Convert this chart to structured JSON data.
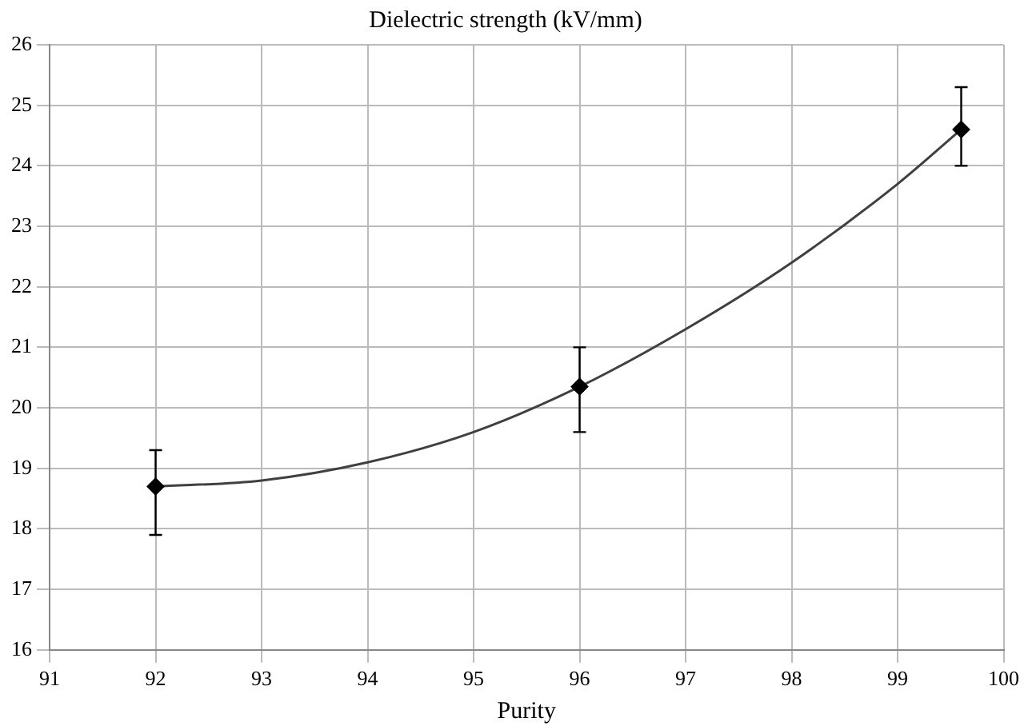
{
  "chart_data": {
    "type": "scatter",
    "title": "Dielectric strength (kV/mm)",
    "xlabel": "Purity",
    "xlim": [
      91,
      100
    ],
    "xticks": [
      91,
      92,
      93,
      94,
      95,
      96,
      97,
      98,
      99,
      100
    ],
    "ylim": [
      16,
      26
    ],
    "yticks": [
      16,
      17,
      18,
      19,
      20,
      21,
      22,
      23,
      24,
      25,
      26
    ],
    "grid": true,
    "legend": false,
    "marker": "diamond",
    "series": [
      {
        "type": "scatter",
        "color": "#000000",
        "x": [
          92,
          96,
          99.6
        ],
        "values": [
          18.7,
          20.35,
          24.6
        ],
        "errors": [
          [
            17.9,
            19.3
          ],
          [
            19.6,
            21.0
          ],
          [
            24.0,
            25.3
          ]
        ]
      },
      {
        "type": "line",
        "color": "#404040",
        "marker": "none",
        "line_style": "solid",
        "x": [
          92,
          93,
          94,
          95,
          96,
          97,
          98,
          99,
          99.6
        ],
        "values": [
          18.7,
          18.8,
          19.1,
          19.6,
          20.35,
          21.3,
          22.4,
          23.7,
          24.6
        ]
      }
    ]
  }
}
